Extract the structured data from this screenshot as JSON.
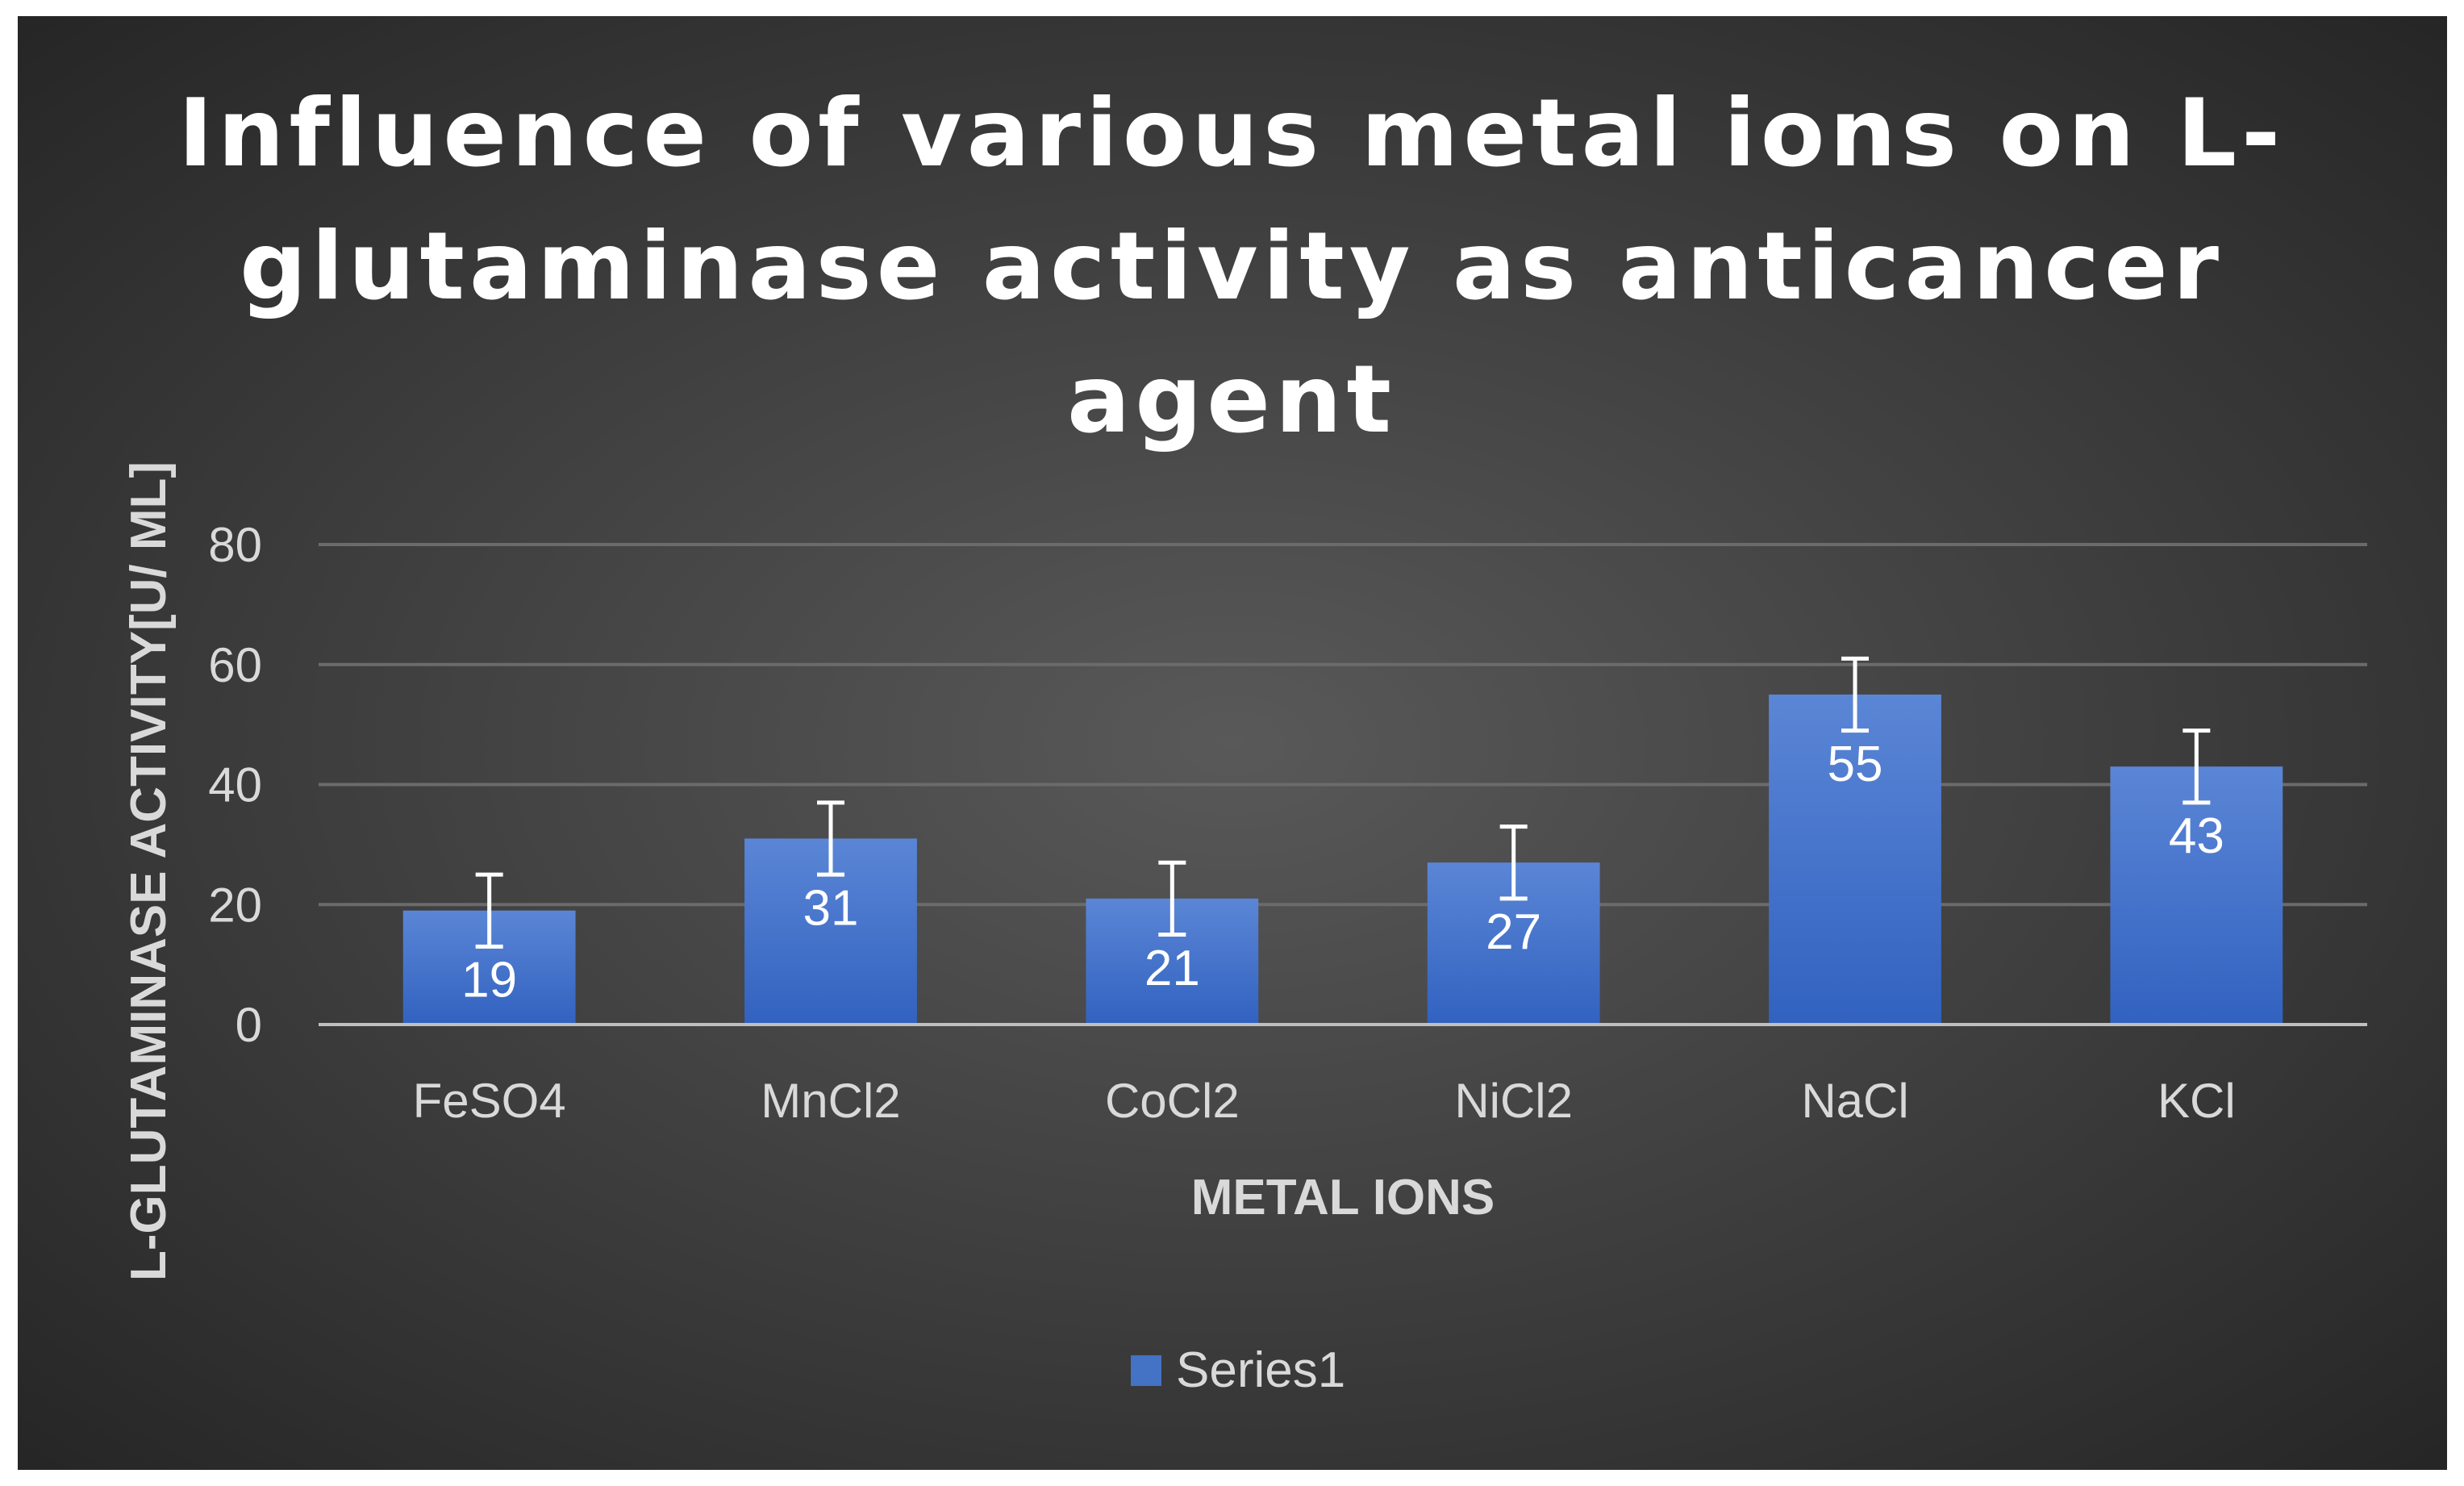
{
  "chart_data": {
    "type": "bar",
    "title_lines": [
      "Influence of various metal ions on L-",
      "glutaminase activity as anticancer",
      "agent"
    ],
    "title": "Influence of various metal ions on L-glutaminase activity as anticancer agent",
    "xlabel": "METAL IONS",
    "ylabel": "L-GLUTAMINASE ACTIVITY[U/ ML]",
    "categories": [
      "FeSO4",
      "MnCl2",
      "CoCl2",
      "NiCl2",
      "NaCl",
      "KCl"
    ],
    "series": [
      {
        "name": "Series1",
        "values": [
          19,
          31,
          21,
          27,
          55,
          43
        ],
        "error_plus_minus": [
          6,
          6,
          6,
          6,
          6,
          6
        ],
        "color": "#4472c4"
      }
    ],
    "data_labels": [
      "19",
      "31",
      "21",
      "27",
      "55",
      "43"
    ],
    "ylim": [
      0,
      80
    ],
    "yticks": [
      0,
      20,
      40,
      60,
      80
    ],
    "ytick_labels": [
      "0",
      "20",
      "40",
      "60",
      "80"
    ],
    "grid": true,
    "legend_position": "bottom",
    "colors": {
      "background_center": "#595959",
      "background_edge": "#262626",
      "bar_top": "#5b86d6",
      "bar_bottom": "#3162c0",
      "text": "#d9d9d9",
      "title": "#ffffff",
      "gridline": "#6b6b6b",
      "axis_line": "#bfbfbf",
      "error_bar": "#ffffff"
    }
  }
}
